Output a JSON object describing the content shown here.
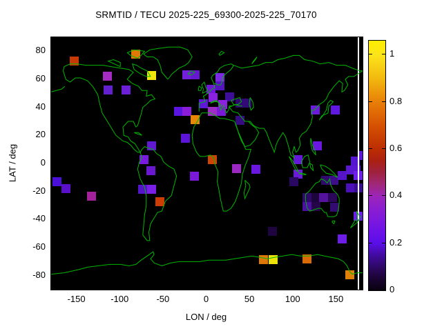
{
  "title": "SRMTID / TECU 2025-225_69300-2025-225_70170",
  "x_axis": {
    "label": "LON / deg",
    "ticks": [
      -150,
      -100,
      -50,
      0,
      50,
      100,
      150
    ],
    "min": -180,
    "max": 180
  },
  "y_axis": {
    "label": "LAT / deg",
    "ticks": [
      80,
      60,
      40,
      20,
      0,
      -20,
      -40,
      -60,
      -80
    ],
    "min": -90,
    "max": 90
  },
  "colorbar": {
    "tick_labels": [
      "0",
      "0.2",
      "0.4",
      "0.6",
      "0.8",
      "1"
    ],
    "tick_values": [
      0,
      0.2,
      0.4,
      0.6,
      0.8,
      1
    ],
    "max_value": 1.06,
    "gradient": [
      {
        "v": 0.0,
        "c": "#0a0210"
      },
      {
        "v": 0.05,
        "c": "#1b0433"
      },
      {
        "v": 0.1,
        "c": "#2e0866"
      },
      {
        "v": 0.15,
        "c": "#420ba0"
      },
      {
        "v": 0.2,
        "c": "#5a0ee8"
      },
      {
        "v": 0.25,
        "c": "#6c12e6"
      },
      {
        "v": 0.3,
        "c": "#7d18dd"
      },
      {
        "v": 0.35,
        "c": "#8c1ecf"
      },
      {
        "v": 0.4,
        "c": "#9c25b8"
      },
      {
        "v": 0.45,
        "c": "#a02878"
      },
      {
        "v": 0.5,
        "c": "#9e2240"
      },
      {
        "v": 0.55,
        "c": "#ab2012"
      },
      {
        "v": 0.6,
        "c": "#bc2d02"
      },
      {
        "v": 0.7,
        "c": "#d65102"
      },
      {
        "v": 0.8,
        "c": "#e87f08"
      },
      {
        "v": 0.9,
        "c": "#f2b90f"
      },
      {
        "v": 1.0,
        "c": "#fce51a"
      },
      {
        "v": 1.06,
        "c": "#ffee00"
      }
    ]
  },
  "colors": {
    "background": "#000000",
    "coastline": "#00b800",
    "page": "#ffffff",
    "text": "#000000"
  },
  "chart_data": {
    "type": "heatmap",
    "title": "SRMTID / TECU 2025-225_69300-2025-225_70170",
    "xlabel": "LON / deg",
    "ylabel": "LAT / deg",
    "xlim": [
      -180,
      180
    ],
    "ylim": [
      -90,
      90
    ],
    "value_range": [
      0,
      1.06
    ],
    "legend_position": "right-colorbar",
    "cells": [
      {
        "lon": -153.5,
        "lat": 73,
        "value": 0.63,
        "color": "#c83a05"
      },
      {
        "lon": -82.5,
        "lat": 78,
        "value": 0.78,
        "color": "#e07a06"
      },
      {
        "lon": -115,
        "lat": 62,
        "value": 0.42,
        "color": "#a42cc0"
      },
      {
        "lon": -64,
        "lat": 62.5,
        "value": 1.02,
        "color": "#f2e60c"
      },
      {
        "lon": -114,
        "lat": 52.5,
        "value": 0.27,
        "color": "#6320d0"
      },
      {
        "lon": -93,
        "lat": 52.5,
        "value": 0.27,
        "color": "#6b1fd6"
      },
      {
        "lon": -23.5,
        "lat": 63,
        "value": 0.28,
        "color": "#7220dc"
      },
      {
        "lon": -13.5,
        "lat": 63,
        "value": 0.26,
        "color": "#6518d0"
      },
      {
        "lon": -33,
        "lat": 37,
        "value": 0.22,
        "color": "#5a16e0"
      },
      {
        "lon": -23,
        "lat": 37,
        "value": 0.33,
        "color": "#8a1ed8"
      },
      {
        "lon": -13.5,
        "lat": 31,
        "value": 0.82,
        "color": "#e88607"
      },
      {
        "lon": -24.5,
        "lat": 18,
        "value": 0.23,
        "color": "#5c14d8"
      },
      {
        "lon": -64,
        "lat": 12.5,
        "value": 0.25,
        "color": "#6018d0"
      },
      {
        "lon": -72.5,
        "lat": 2.5,
        "value": 0.3,
        "color": "#7a1ae0"
      },
      {
        "lon": -64.5,
        "lat": -5,
        "value": 0.27,
        "color": "#6a18d0"
      },
      {
        "lon": -74,
        "lat": -18.5,
        "value": 0.22,
        "color": "#5514c8"
      },
      {
        "lon": -64,
        "lat": -18.5,
        "value": 0.3,
        "color": "#7a1ee8"
      },
      {
        "lon": -54,
        "lat": -27.5,
        "value": 0.64,
        "color": "#cc3c05"
      },
      {
        "lon": -173.5,
        "lat": -13,
        "value": 0.2,
        "color": "#4a10d8"
      },
      {
        "lon": -163,
        "lat": -18,
        "value": 0.22,
        "color": "#5a10c8"
      },
      {
        "lon": -133.5,
        "lat": -23.5,
        "value": 0.45,
        "color": "#a4219c"
      },
      {
        "lon": -14,
        "lat": -9,
        "value": 0.3,
        "color": "#7a1ad8"
      },
      {
        "lon": 6,
        "lat": 2.5,
        "value": 0.65,
        "color": "#cc4505"
      },
      {
        "lon": 34.5,
        "lat": -3.5,
        "value": 0.42,
        "color": "#9c28c4"
      },
      {
        "lon": 56.5,
        "lat": -4,
        "value": 0.27,
        "color": "#6a18e0"
      },
      {
        "lon": 15.5,
        "lat": 61,
        "value": 0.3,
        "color": "#7a2ae0"
      },
      {
        "lon": 15.5,
        "lat": 55.5,
        "value": 0.23,
        "color": "#5514c0"
      },
      {
        "lon": 5,
        "lat": 53,
        "value": 0.28,
        "color": "#7018d8"
      },
      {
        "lon": 7.5,
        "lat": 47,
        "value": 0.33,
        "color": "#8a20e0"
      },
      {
        "lon": -4,
        "lat": 42.5,
        "value": 0.26,
        "color": "#6018d8"
      },
      {
        "lon": 26,
        "lat": 47.5,
        "value": 0.17,
        "color": "#3c0e9a"
      },
      {
        "lon": 18.5,
        "lat": 42,
        "value": 0.34,
        "color": "#8c22e0"
      },
      {
        "lon": 6.5,
        "lat": 37,
        "value": 0.4,
        "color": "#a02cc8"
      },
      {
        "lon": 17,
        "lat": 37,
        "value": 0.3,
        "color": "#7a1ad8"
      },
      {
        "lon": 38.5,
        "lat": 43,
        "value": 0.13,
        "color": "#2e0870"
      },
      {
        "lon": 46.5,
        "lat": 43,
        "value": 0.14,
        "color": "#320a78"
      },
      {
        "lon": 38,
        "lat": 30.5,
        "value": 0.14,
        "color": "#350b80"
      },
      {
        "lon": 125.5,
        "lat": 38,
        "value": 0.27,
        "color": "#6a1cd8"
      },
      {
        "lon": 148.5,
        "lat": 38,
        "value": 0.26,
        "color": "#6018e0"
      },
      {
        "lon": 127.5,
        "lat": 12.5,
        "value": 0.27,
        "color": "#6a18e0"
      },
      {
        "lon": 105.5,
        "lat": 2.5,
        "value": 0.26,
        "color": "#6518d8"
      },
      {
        "lon": 105,
        "lat": -7.5,
        "value": 0.27,
        "color": "#6a1ad8"
      },
      {
        "lon": 100.5,
        "lat": -13,
        "value": 0.11,
        "color": "#2a0760"
      },
      {
        "lon": 137,
        "lat": -12,
        "value": 0.13,
        "color": "#300a6e"
      },
      {
        "lon": 147,
        "lat": -12,
        "value": 0.16,
        "color": "#3c0e8a"
      },
      {
        "lon": 156.5,
        "lat": -8.5,
        "value": 0.22,
        "color": "#5514c8"
      },
      {
        "lon": 166,
        "lat": -4.5,
        "value": 0.23,
        "color": "#5a16d0"
      },
      {
        "lon": 172.5,
        "lat": -4.5,
        "value": 0.23,
        "color": "#5a16d0"
      },
      {
        "lon": 174.5,
        "lat": -8.5,
        "value": 0.28,
        "color": "#6e20e8"
      },
      {
        "lon": 166,
        "lat": -17.5,
        "value": 0.2,
        "color": "#4c10b8"
      },
      {
        "lon": 176,
        "lat": -17.5,
        "value": 0.16,
        "color": "#3a0c90"
      },
      {
        "lon": 116,
        "lat": -24.5,
        "value": 0.12,
        "color": "#2e0968"
      },
      {
        "lon": 126,
        "lat": -24.5,
        "value": 0.08,
        "color": "#1c053c"
      },
      {
        "lon": 135,
        "lat": -24.5,
        "value": 0.21,
        "color": "#55129c"
      },
      {
        "lon": 145,
        "lat": -24.5,
        "value": 0.11,
        "color": "#2a0758"
      },
      {
        "lon": 116,
        "lat": -30.5,
        "value": 0.19,
        "color": "#4a10a0"
      },
      {
        "lon": 126,
        "lat": -30.5,
        "value": 0.1,
        "color": "#240648"
      },
      {
        "lon": 148,
        "lat": -31,
        "value": 0.13,
        "color": "#320a70"
      },
      {
        "lon": 175,
        "lat": -37.5,
        "value": 0.27,
        "color": "#6a1ee8"
      },
      {
        "lon": 179.5,
        "lat": 5.5,
        "value": 0.25,
        "color": "#6018d8"
      },
      {
        "lon": 171.5,
        "lat": 1.5,
        "value": 0.22,
        "color": "#5514d0"
      },
      {
        "lon": 76,
        "lat": -48.5,
        "value": 0.08,
        "color": "#1e0540"
      },
      {
        "lon": 156.5,
        "lat": -54,
        "value": 0.28,
        "color": "#6e1ce8"
      },
      {
        "lon": 65.5,
        "lat": -68.5,
        "value": 0.78,
        "color": "#dd7708"
      },
      {
        "lon": 77,
        "lat": -68.5,
        "value": 0.98,
        "color": "#ece20a"
      },
      {
        "lon": 116,
        "lat": -68,
        "value": 0.72,
        "color": "#d96a06"
      },
      {
        "lon": 165.5,
        "lat": -79.5,
        "value": 0.8,
        "color": "#e08008"
      }
    ]
  }
}
